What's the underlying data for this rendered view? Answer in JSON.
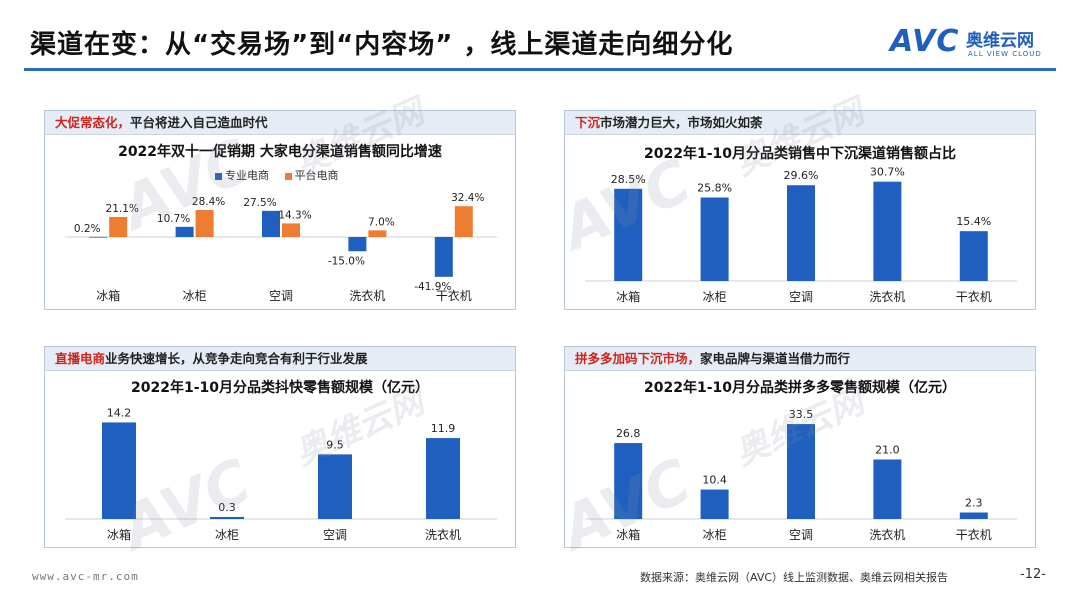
{
  "header": {
    "title": "渠道在变：从“交易场”到“内容场”  ，线上渠道走向细分化",
    "logo_mark": "AVC",
    "logo_cn": "奥维云网",
    "logo_en": "ALL VIEW CLOUD"
  },
  "watermark": {
    "mark": "AVC",
    "cn": "奥维云网",
    "en": "ALL VIEW CLOUD"
  },
  "panels": [
    {
      "head_highlight": "大促常态化，",
      "head_rest": "平台将进入自己造血时代"
    },
    {
      "head_highlight": "下沉",
      "head_rest": "市场潜力巨大，市场如火如荼"
    },
    {
      "head_highlight": "直播电商",
      "head_rest": "业务快速增长，从竞争走向竞合有利于行业发展"
    },
    {
      "head_highlight": "拼多多加码下沉市场，",
      "head_rest": "家电品牌与渠道当借力而行"
    }
  ],
  "chart_data": [
    {
      "type": "bar",
      "title": "2022年双十一促销期 大家电分渠道销售额同比增速",
      "categories": [
        "冰箱",
        "冰柜",
        "空调",
        "洗衣机",
        "干衣机"
      ],
      "series": [
        {
          "name": "专业电商",
          "values": [
            0.2,
            10.7,
            27.5,
            -15.0,
            -41.9
          ],
          "labels": [
            "0.2%",
            "10.7%",
            "27.5%",
            "-15.0%",
            "-41.9%"
          ],
          "color": "#1f5fbf"
        },
        {
          "name": "平台电商",
          "values": [
            21.1,
            28.4,
            14.3,
            7.0,
            32.4
          ],
          "labels": [
            "21.1%",
            "28.4%",
            "14.3%",
            "7.0%",
            "32.4%"
          ],
          "color": "#ee7d31"
        }
      ],
      "legend": "top",
      "ylim": [
        -45,
        35
      ]
    },
    {
      "type": "bar",
      "title": "2022年1-10月分品类销售中下沉渠道销售额占比",
      "categories": [
        "冰箱",
        "冰柜",
        "空调",
        "洗衣机",
        "干衣机"
      ],
      "values": [
        28.5,
        25.8,
        29.6,
        30.7,
        15.4
      ],
      "labels": [
        "28.5%",
        "25.8%",
        "29.6%",
        "30.7%",
        "15.4%"
      ],
      "color": "#1f5fbf",
      "ylim": [
        0,
        34
      ]
    },
    {
      "type": "bar",
      "title": "2022年1-10月分品类抖快零售额规模（亿元）",
      "categories": [
        "冰箱",
        "冰柜",
        "空调",
        "洗衣机"
      ],
      "values": [
        14.2,
        0.3,
        9.5,
        11.9
      ],
      "labels": [
        "14.2",
        "0.3",
        "9.5",
        "11.9"
      ],
      "color": "#1f5fbf",
      "ylim": [
        0,
        15
      ]
    },
    {
      "type": "bar",
      "title": "2022年1-10月分品类拼多多零售额规模（亿元）",
      "categories": [
        "冰箱",
        "冰柜",
        "空调",
        "洗衣机",
        "干衣机"
      ],
      "values": [
        26.8,
        10.4,
        33.5,
        21.0,
        2.3
      ],
      "labels": [
        "26.8",
        "10.4",
        "33.5",
        "21.0",
        "2.3"
      ],
      "color": "#1f5fbf",
      "ylim": [
        0,
        36
      ]
    }
  ],
  "footer": {
    "url": "www.avc-mr.com",
    "source": "数据来源：奥维云网（AVC）线上监测数据、奥维云网相关报告",
    "page": "-12-"
  }
}
